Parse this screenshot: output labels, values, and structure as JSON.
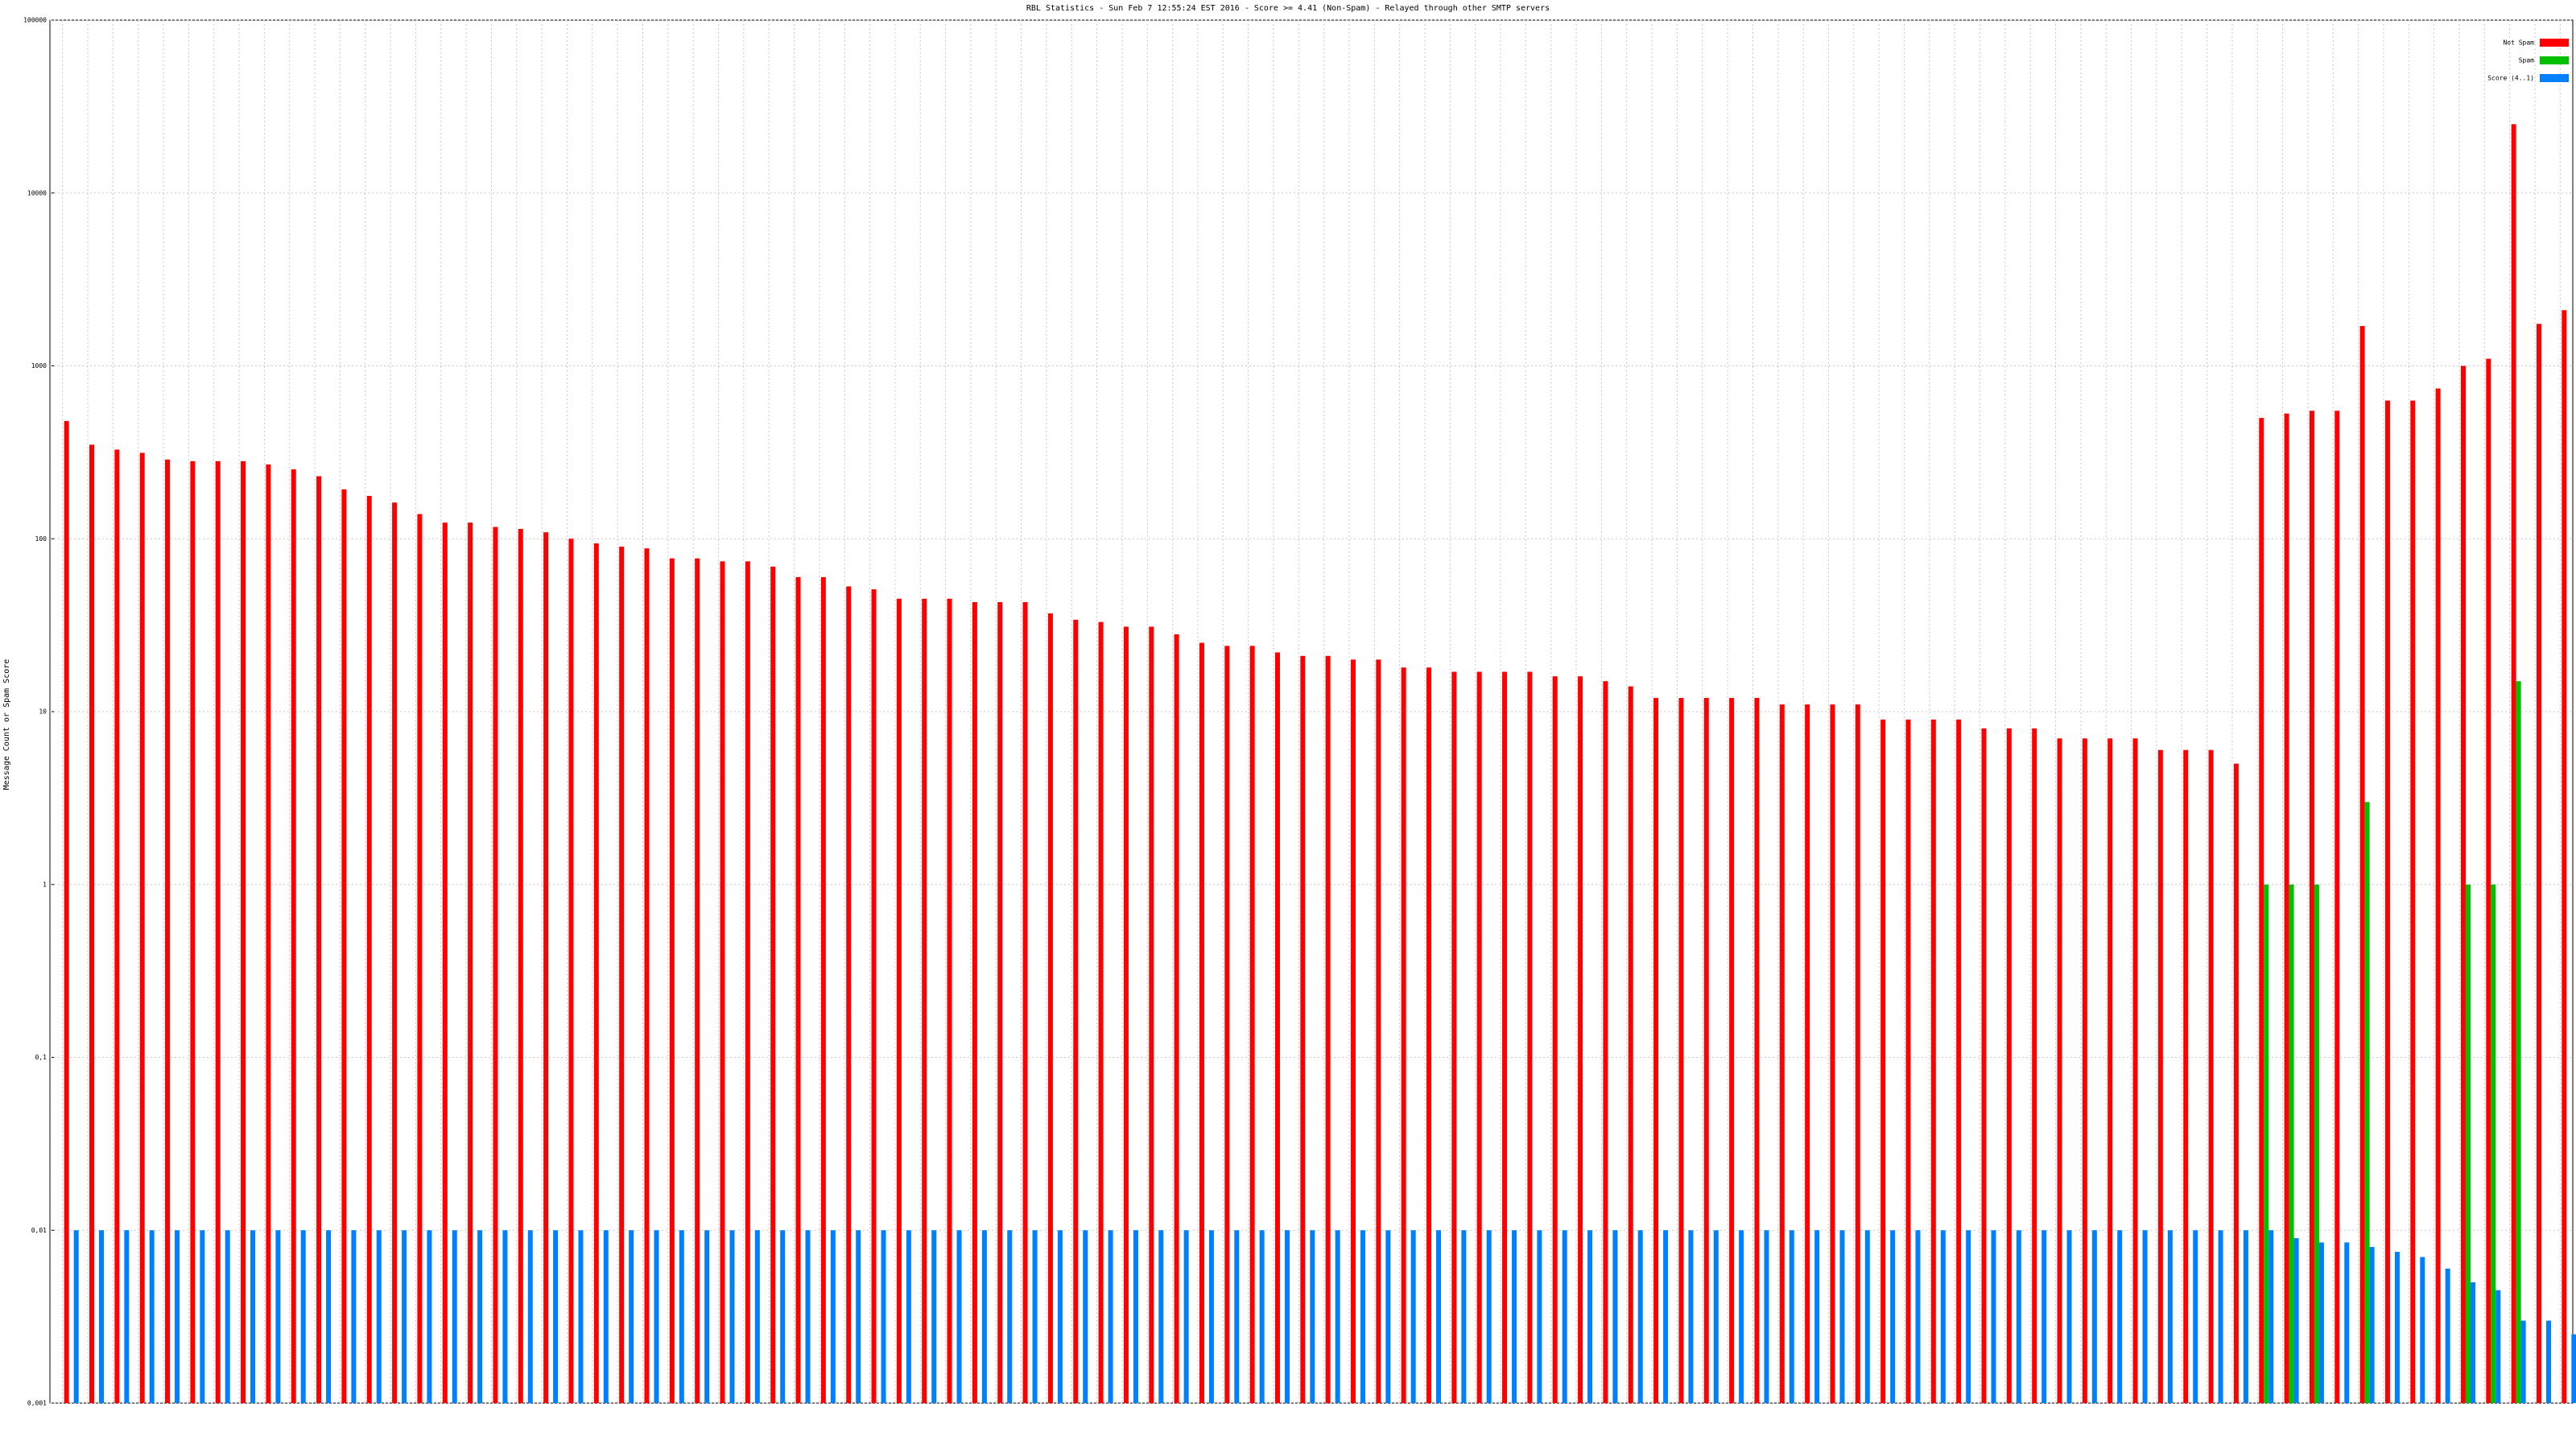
{
  "chart_data": {
    "type": "bar",
    "title": "RBL Statistics - Sun Feb  7 12:55:24 EST 2016 - Score >= 4.41 (Non-Spam) - Relayed through other SMTP servers",
    "y_label": "Message Count or Spam Score",
    "log_scale": true,
    "grid": true,
    "legend": "top-right",
    "ylim": [
      0.001,
      100000
    ],
    "yticks": [
      {
        "value": 0.001,
        "label": "0,001"
      },
      {
        "value": 0.01,
        "label": "0,01"
      },
      {
        "value": 0.1,
        "label": "0,1"
      },
      1,
      10,
      100,
      1000,
      10000,
      100000
    ],
    "categories": [
      null,
      null,
      null,
      null,
      null,
      null,
      null,
      null,
      null,
      null,
      null,
      null,
      null,
      null,
      null,
      null,
      null,
      null,
      null,
      null,
      null,
      null,
      null,
      null,
      null,
      null,
      null,
      null,
      null,
      null,
      null,
      null,
      null,
      null,
      null,
      null,
      null,
      null,
      null,
      null,
      null,
      null,
      null,
      null,
      null,
      null,
      null,
      null,
      null,
      null,
      null,
      null,
      null,
      null,
      null,
      null,
      null,
      null,
      null,
      null,
      null,
      null,
      null,
      null,
      null,
      null,
      null,
      null,
      null,
      null,
      null,
      null,
      null,
      null,
      null,
      null,
      null,
      null,
      null,
      null,
      null,
      null,
      null,
      null,
      null,
      null,
      null,
      null,
      null,
      null,
      null,
      null,
      null,
      null,
      null,
      null,
      null,
      null,
      null,
      null
    ],
    "series": [
      {
        "name": "Not Spam",
        "color": "#ff0000",
        "values": [
          480,
          350,
          328,
          314,
          287,
          281,
          281,
          281,
          269,
          252,
          230,
          193,
          177,
          162,
          139,
          124,
          124,
          117,
          114,
          109,
          100,
          94,
          90,
          88,
          77,
          77,
          74,
          74,
          69,
          60,
          60,
          53,
          51,
          45,
          45,
          45,
          43,
          43,
          43,
          37,
          34,
          33,
          31,
          31,
          28,
          25,
          24,
          24,
          22,
          21,
          21,
          20,
          20,
          18,
          18,
          17,
          17,
          17,
          17,
          16,
          16,
          15,
          14,
          12,
          12,
          12,
          12,
          12,
          11,
          11,
          11,
          11,
          9,
          9,
          9,
          9,
          8,
          8,
          8,
          7,
          7,
          7,
          7,
          6,
          6,
          6,
          5,
          500,
          530,
          550,
          550,
          1700,
          630,
          630,
          740,
          1000,
          1100,
          25000,
          1750,
          2100
        ]
      },
      {
        "name": "Spam",
        "color": "#00c000",
        "values": [
          null,
          null,
          null,
          null,
          null,
          null,
          null,
          null,
          null,
          null,
          null,
          null,
          null,
          null,
          null,
          null,
          null,
          null,
          null,
          null,
          null,
          null,
          null,
          null,
          null,
          null,
          null,
          null,
          null,
          null,
          null,
          null,
          null,
          null,
          null,
          null,
          null,
          null,
          null,
          null,
          null,
          null,
          null,
          null,
          null,
          null,
          null,
          null,
          null,
          null,
          null,
          null,
          null,
          null,
          null,
          null,
          null,
          null,
          null,
          null,
          null,
          null,
          null,
          null,
          null,
          null,
          null,
          null,
          null,
          null,
          null,
          null,
          null,
          null,
          null,
          null,
          null,
          null,
          null,
          null,
          null,
          null,
          null,
          null,
          null,
          null,
          null,
          1,
          1,
          1,
          null,
          3,
          null,
          null,
          null,
          1,
          1,
          15,
          null,
          null
        ]
      },
      {
        "name": "Score (4..1)",
        "color": "#0080ff",
        "values": [
          0.01,
          0.01,
          0.01,
          0.01,
          0.01,
          0.01,
          0.01,
          0.01,
          0.01,
          0.01,
          0.01,
          0.01,
          0.01,
          0.01,
          0.01,
          0.01,
          0.01,
          0.01,
          0.01,
          0.01,
          0.01,
          0.01,
          0.01,
          0.01,
          0.01,
          0.01,
          0.01,
          0.01,
          0.01,
          0.01,
          0.01,
          0.01,
          0.01,
          0.01,
          0.01,
          0.01,
          0.01,
          0.01,
          0.01,
          0.01,
          0.01,
          0.01,
          0.01,
          0.01,
          0.01,
          0.01,
          0.01,
          0.01,
          0.01,
          0.01,
          0.01,
          0.01,
          0.01,
          0.01,
          0.01,
          0.01,
          0.01,
          0.01,
          0.01,
          0.01,
          0.01,
          0.01,
          0.01,
          0.01,
          0.01,
          0.01,
          0.01,
          0.01,
          0.01,
          0.01,
          0.01,
          0.01,
          0.01,
          0.01,
          0.01,
          0.01,
          0.01,
          0.01,
          0.01,
          0.01,
          0.01,
          0.01,
          0.01,
          0.01,
          0.01,
          0.01,
          0.01,
          0.01,
          0.009,
          0.0085,
          0.0085,
          0.008,
          0.0075,
          0.007,
          0.006,
          0.005,
          0.0045,
          0.003,
          0.003,
          0.0025
        ]
      }
    ]
  }
}
